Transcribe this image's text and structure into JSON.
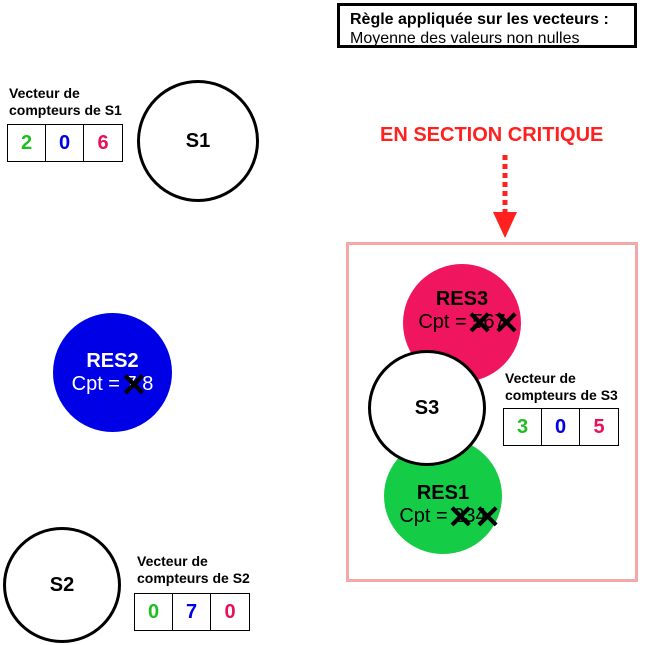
{
  "rule": {
    "title": "Règle appliquée sur les vecteurs :",
    "text": "Moyenne des valeurs non nulles"
  },
  "critical_section": {
    "label": "EN SECTION CRITIQUE",
    "color": "#ff2020",
    "box_color": "#f4a7a7"
  },
  "colors": {
    "green": "#1fbf1f",
    "blue": "#0000e6",
    "pink": "#e8105a",
    "res1_fill": "#14cc46",
    "res2_fill": "#0000e6",
    "res3_fill": "#f0155f"
  },
  "stations": {
    "s1": {
      "label": "S1",
      "vector_label_line1": "Vecteur de",
      "vector_label_line2": "compteurs de S1",
      "vector": [
        "2",
        "0",
        "6"
      ]
    },
    "s2": {
      "label": "S2",
      "vector_label_line1": "Vecteur de",
      "vector_label_line2": "compteurs de S2",
      "vector": [
        "0",
        "7",
        "0"
      ]
    },
    "s3": {
      "label": "S3",
      "vector_label_line1": "Vecteur de",
      "vector_label_line2": "compteurs de S3",
      "vector": [
        "3",
        "0",
        "5"
      ]
    }
  },
  "resources": {
    "res1": {
      "name": "RES1",
      "cpt_prefix": "Cpt = ",
      "crossed": "23",
      "current": "4"
    },
    "res2": {
      "name": "RES2",
      "cpt_prefix": "Cpt = ",
      "crossed": "7",
      "current": "8"
    },
    "res3": {
      "name": "RES3",
      "cpt_prefix": "Cpt = ",
      "crossed": "56",
      "current": "7"
    }
  }
}
